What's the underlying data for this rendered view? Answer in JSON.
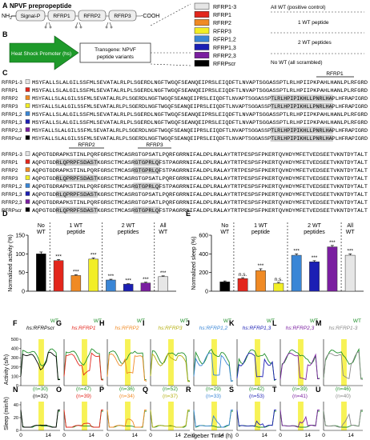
{
  "panel_letters": {
    "A": "A",
    "B": "B",
    "C": "C",
    "D": "D",
    "E": "E",
    "F": "F",
    "G": "G",
    "H": "H",
    "I": "I",
    "J": "J",
    "K": "K",
    "L": "L",
    "M": "M",
    "N": "N",
    "O": "O",
    "P": "P",
    "Q": "Q",
    "R": "R",
    "S": "S",
    "T": "T",
    "U": "U"
  },
  "panel_a": {
    "title": "NPVF prepropeptide",
    "nh2": "NH",
    "nh2_sub": "2",
    "cooh": "-COOH",
    "segments": [
      "Signal-P",
      "RFRP1",
      "RFRP2",
      "RFRP3"
    ]
  },
  "panel_b": {
    "promoter": "Heat Shock Promoter (hs)",
    "transgene_line1": "Transgene: NPVF",
    "transgene_line2": "peptide variants"
  },
  "legend": {
    "items": [
      {
        "name": "RFRP1-3",
        "color": "#e6e6e6"
      },
      {
        "name": "RFRP1",
        "color": "#e3261c"
      },
      {
        "name": "RFRP2",
        "color": "#f08a24"
      },
      {
        "name": "RFRP3",
        "color": "#f2ee25"
      },
      {
        "name": "RFRP1,2",
        "color": "#3a86d6"
      },
      {
        "name": "RFRP1,3",
        "color": "#1b1fb4"
      },
      {
        "name": "RFRP2,3",
        "color": "#7a1ea0"
      },
      {
        "name": "RFRPscr",
        "color": "#000000"
      }
    ],
    "groups": [
      "All WT (positive control)",
      "1 WT peptide",
      "2 WT peptides",
      "No WT (all scrambled)"
    ]
  },
  "panel_c": {
    "header1": "RFRP1",
    "header2a": "RFRP2",
    "header2b": "RFRP3",
    "rows": [
      {
        "name": "RFRP1-3",
        "seq1": "MSYFALLSLALGILSSFMLSEVATALRLPLSGERDLNGFTWGQFSEANQEIPRSLEIQDFTLNVAPTSGGASSPTLRLHPIIPKPAHLHANLPLRFGRD",
        "seq2": "AQPGTGDRAPKSTINLPQRFGRSCTMCASRGTGPSATLPQRFGRRNIFALDPLRALAYTRTPESPSFPKERTQVHDYMFETVEDSEETVKNTDYTALT"
      },
      {
        "name": "RFRP1",
        "seq1": "MSYFALLSLALGILSSFMLSEVATALRLPLSGERDLNGFTWGQFSEANQEIPRSLEIQDFTLNVAPTSGGASSPTLRLHPIIPKPAHLHANLPLRFGRD",
        "seq2": "AQPGTGDRLQPRPFSDASTKGRSCTMCASRGTGPRLQFSTPAGRRNIFALDPLRALAYTRTPESPSFPKERTQVHDYMFETVEDSEETVKNTDYTALT"
      },
      {
        "name": "RFRP2",
        "seq1": "MSYFALLSLALGILSSFMLSEVATALRLPLSGERDLNGFTWGQFSEANQEIPRSLEIQDFTLNVAPTSGGASSPTLRLHPIPIKHLLPNRLHAPLHFRAPIGRD",
        "seq2": "AQPGTGDRAPKSTINLPQRFGRSCTMCASRGTGPRLQFSTPAGRRNIFALDPLRALAYTRTPESPSFPKERTQVHDYMFETVEDSEETVKNTDYTALT"
      },
      {
        "name": "RFRP3",
        "seq1": "MSYFALLSLALGILSSFMLSEVATALRLPLSGERDLNGFTWGQFSEANQEIPRSLEIQDFTLNVAPTSGGASSPTLRLHPIPIKHLLPNRLHAPLHFRAPIGRD",
        "seq2": "AQPGTGDRLQPRPFSDASTKGRSCTMCASRGTGPSATLPQRFGRRNIFALDPLRALAYTRTPESPSFPKERTQVHDYMFETVEDSEETVKNTDYTALT"
      },
      {
        "name": "RFRP1,2",
        "seq1": "MSYFALLSLALGILSSFMLSEVATALRLPLSGERDLNGFTWGQFSEANQEIPRSLEIQDFTLNVAPTSGGASSPTLRLHPIIPKPAHLHANLPLRFGRD",
        "seq2": "AQPGTGDRAPKSTINLPQRFGRSCTMCASRGTGPRLQFSTPAGRRNIFALDPLRALAYTRTPESPSFPKERTQVHDYMFETVEDSEETVKNTDYTALT"
      },
      {
        "name": "RFRP1,3",
        "seq1": "MSYFALLSLALGILSSFMLSEVATALRLPLSGERDLNGFTWGQFSEANQEIPRSLEIQDFTLNVAPTSGGASSPTLRLHPIIPKPAHLHANLPLRFGRD",
        "seq2": "AQPGTGDRLQPRPFSDASTKGRSCTMCASRGTGPSATLPQRFGRRNIFALDPLRALAYTRTPESPSFPKERTQVHDYMFETVEDSEETVKNTDYTALT"
      },
      {
        "name": "RFRP2,3",
        "seq1": "MSYFALLSLALGILSSFMLSEVATALRLPLSGERDLNGFTWGQFSEANQEIPRSLEIQDFTLNVAPTSGGASSPTLRLHPIPIKHLLPNRLHAPLHFRAPIGRD",
        "seq2": "AQPGTGDRAPKSTINLPQRFGRSCTMCASRGTGPSATLPQRFGRRNIFALDPLRALAYTRTPESPSFPKERTQVHDYMFETVEDSEETVKNTDYTALT"
      },
      {
        "name": "RFRPscr",
        "seq1": "MSYFALLSLALGILSSFMLSEVATALRLPLSGERDLNGFTWGQFSEANQEIPRSLEIQDFTLNVAPTSGGASSPTLRLHPIPIKHLLPNRLHAPLHFRAPIGRD",
        "seq2": "AQPGTGDRLQPRPFSDASTKGRSCTMCASRGTGPRLQFSTPAGRRNIFALDPLRALAYTRTPESPSFPKERTQVHDYMFETVEDSEETVKNTDYTALT"
      }
    ]
  },
  "chart_data": [
    {
      "type": "bar",
      "ylabel": "Normalized activity (%)",
      "ylim": [
        0,
        150
      ],
      "yticks": [
        "0",
        "50",
        "100",
        "150"
      ],
      "group_labels": [
        "No WT",
        "1 WT peptide",
        "2 WT peptides",
        "All WT"
      ],
      "categories": [
        "RFRPscr",
        "RFRP1",
        "RFRP2",
        "RFRP3",
        "RFRP1,2",
        "RFRP1,3",
        "RFRP2,3",
        "RFRP1-3"
      ],
      "values": [
        100,
        82,
        42,
        86,
        30,
        19,
        22,
        39
      ],
      "errors": [
        5,
        3,
        2,
        3,
        2,
        1,
        2,
        2
      ],
      "significance": [
        "",
        "***",
        "***",
        "***",
        "***",
        "***",
        "***",
        "***"
      ],
      "colors": [
        "#000000",
        "#e3261c",
        "#f08a24",
        "#f2ee25",
        "#3a86d6",
        "#1b1fb4",
        "#7a1ea0",
        "#e6e6e6"
      ]
    },
    {
      "type": "bar",
      "ylabel": "Normalized sleep (%)",
      "ylim": [
        0,
        600
      ],
      "yticks": [
        "0",
        "200",
        "400",
        "600"
      ],
      "group_labels": [
        "No WT",
        "1 WT peptide",
        "2 WT peptides",
        "All WT"
      ],
      "categories": [
        "RFRPscr",
        "RFRP1",
        "RFRP2",
        "RFRP3",
        "RFRP1,2",
        "RFRP1,3",
        "RFRP2,3",
        "RFRP1-3"
      ],
      "values": [
        100,
        135,
        220,
        85,
        385,
        315,
        475,
        385
      ],
      "errors": [
        10,
        10,
        20,
        10,
        15,
        12,
        15,
        15
      ],
      "significance": [
        "",
        "n.s.",
        "***",
        "n.s.",
        "***",
        "***",
        "***",
        "***"
      ],
      "colors": [
        "#000000",
        "#e3261c",
        "#f08a24",
        "#f2ee25",
        "#3a86d6",
        "#1b1fb4",
        "#7a1ea0",
        "#e6e6e6"
      ]
    },
    {
      "type": "line",
      "activity_ylabel": "Activity (s/h)",
      "sleep_ylabel": "Sleep (min/h)",
      "xlabel": "Zeitgeber Time (h)",
      "xticks": [
        "0",
        "14"
      ],
      "activity_ytick_labels": [
        "0",
        "100",
        "200",
        "300",
        "400",
        "500"
      ],
      "activity_ytick_values": [
        0,
        100,
        200,
        300,
        400,
        500
      ],
      "activity_ylim": [
        0,
        500
      ],
      "sleep_ytick_labels": [
        "0",
        "20",
        "40"
      ],
      "sleep_ytick_values": [
        0,
        20,
        40
      ],
      "sleep_ylim": [
        0,
        45
      ],
      "wt_label": "WT",
      "wt_color": "#1f8f2a",
      "panels": [
        {
          "title": "hs:RFRPscr",
          "color": "#000000",
          "n_wt": "(n=30)",
          "n_tg": "(n=32)"
        },
        {
          "title": "hs:RFRP1",
          "color": "#e3261c",
          "n_wt": "(n=47)",
          "n_tg": "(n=39)"
        },
        {
          "title": "hs:RFRP2",
          "color": "#f08a24",
          "n_wt": "(n=36)",
          "n_tg": "(n=34)"
        },
        {
          "title": "hs:RFRP3",
          "color": "#b5b012",
          "n_wt": "(n=52)",
          "n_tg": "(n=37)"
        },
        {
          "title": "hs:RFRP1,2",
          "color": "#3a86d6",
          "n_wt": "(n=29)",
          "n_tg": "(n=33)"
        },
        {
          "title": "hs:RFRP1,3",
          "color": "#1b1fb4",
          "n_wt": "(n=42)",
          "n_tg": "(n=53)"
        },
        {
          "title": "hs:RFRP2,3",
          "color": "#7a1ea0",
          "n_wt": "(n=39)",
          "n_tg": "(n=41)"
        },
        {
          "title": "hs:RFRP1-3",
          "color": "#8a8a8a",
          "n_wt": "(n=46)",
          "n_tg": "(n=40)"
        }
      ]
    }
  ]
}
